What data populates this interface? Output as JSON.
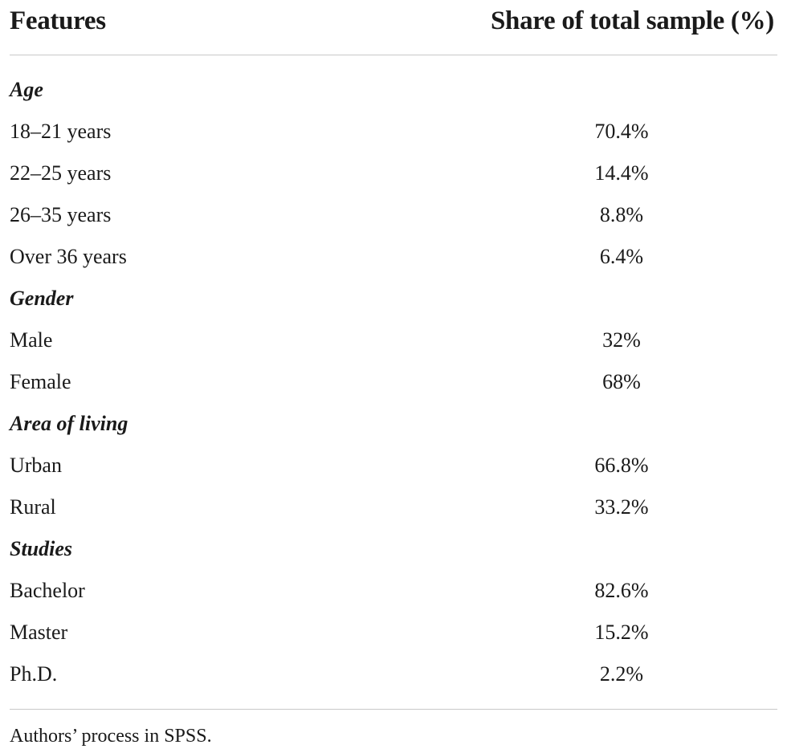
{
  "table": {
    "headers": {
      "features": "Features",
      "share": "Share of total sample (%)"
    },
    "rows": [
      {
        "type": "section",
        "label": "Age",
        "value": ""
      },
      {
        "type": "item",
        "label": "18–21 years",
        "value": "70.4%"
      },
      {
        "type": "item",
        "label": "22–25 years",
        "value": "14.4%"
      },
      {
        "type": "item",
        "label": "26–35 years",
        "value": "8.8%"
      },
      {
        "type": "item",
        "label": "Over 36 years",
        "value": "6.4%"
      },
      {
        "type": "section",
        "label": "Gender",
        "value": ""
      },
      {
        "type": "item",
        "label": "Male",
        "value": "32%"
      },
      {
        "type": "item",
        "label": "Female",
        "value": "68%"
      },
      {
        "type": "section",
        "label": "Area of living",
        "value": ""
      },
      {
        "type": "item",
        "label": "Urban",
        "value": "66.8%"
      },
      {
        "type": "item",
        "label": "Rural",
        "value": "33.2%"
      },
      {
        "type": "section",
        "label": "Studies",
        "value": ""
      },
      {
        "type": "item",
        "label": "Bachelor",
        "value": "82.6%"
      },
      {
        "type": "item",
        "label": "Master",
        "value": "15.2%"
      },
      {
        "type": "item",
        "label": "Ph.D.",
        "value": "2.2%"
      }
    ],
    "footnote": "Authors’ process in SPSS."
  }
}
